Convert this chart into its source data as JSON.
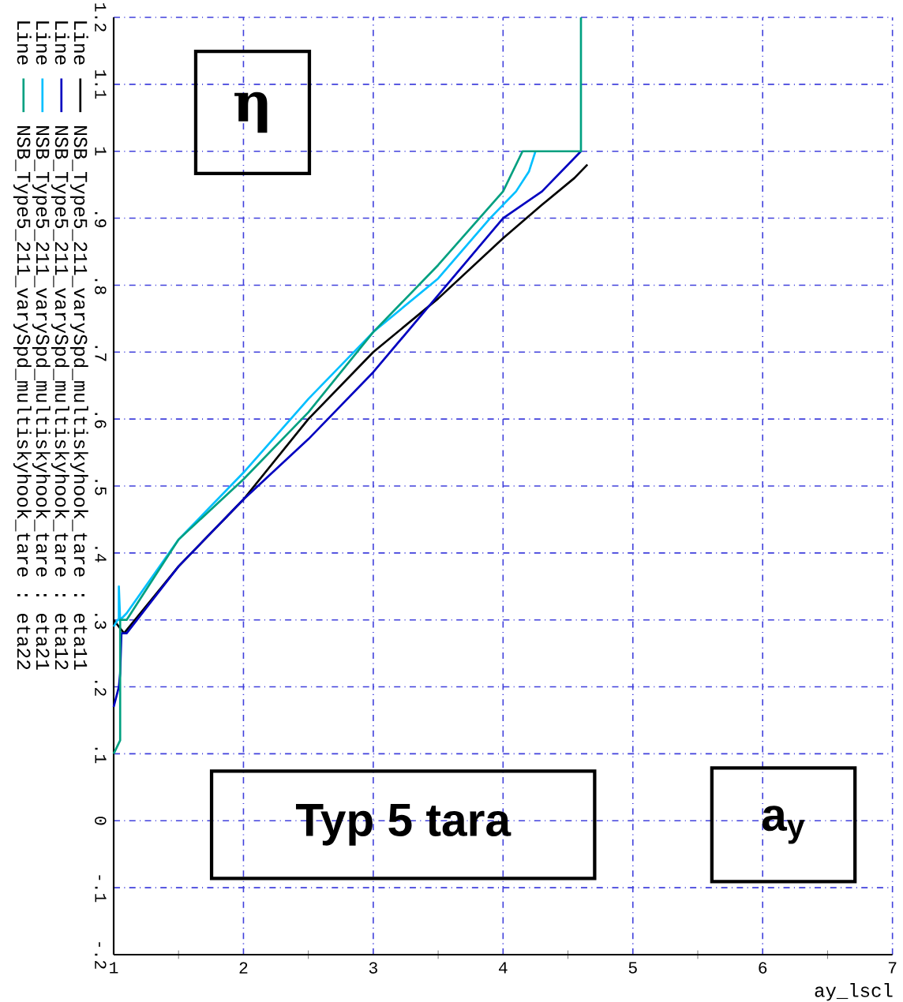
{
  "chart_data": {
    "type": "line",
    "xlabel": "ay_lscl",
    "legend_title": "Line",
    "annotations": [
      "η",
      "Typ 5 tara",
      "a$_{y}$"
    ],
    "xlim": [
      1,
      7
    ],
    "ylim": [
      -0.2,
      1.2
    ],
    "xticks": [
      1,
      2,
      3,
      4,
      5,
      6,
      7
    ],
    "yticks": [
      {
        "value": -0.2,
        "label": "-.2"
      },
      {
        "value": -0.1,
        "label": "-.1"
      },
      0,
      {
        "value": 0.1,
        "label": ".1"
      },
      {
        "value": 0.2,
        "label": ".2"
      },
      {
        "value": 0.3,
        "label": ".3"
      },
      {
        "value": 0.4,
        "label": ".4"
      },
      {
        "value": 0.5,
        "label": ".5"
      },
      {
        "value": 0.6,
        "label": ".6"
      },
      {
        "value": 0.7,
        "label": ".7"
      },
      {
        "value": 0.8,
        "label": ".8"
      },
      {
        "value": 0.9,
        "label": ".9"
      },
      1,
      1.1,
      1.2
    ],
    "grid": true,
    "legend": "left",
    "line_style": "solid",
    "series": [
      {
        "name": "NSB_Type5_211_varySpd_multiskyhook_tare : eta11",
        "color": "#000000",
        "x": [
          1,
          1.04,
          1.08,
          1.5,
          2,
          2.5,
          3,
          3.5,
          4,
          4.3,
          4.55,
          4.65
        ],
        "values": [
          0.3,
          0.29,
          0.28,
          0.38,
          0.48,
          0.6,
          0.7,
          0.78,
          0.87,
          0.92,
          0.96,
          0.98
        ]
      },
      {
        "name": "NSB_Type5_211_varySpd_multiskyhook_tare : eta12",
        "color": "#0000c0",
        "x": [
          1,
          1.04,
          1.05,
          1.06,
          1.1,
          1.5,
          2,
          2.5,
          3,
          3.5,
          4,
          4.3,
          4.6
        ],
        "values": [
          0.17,
          0.2,
          0.22,
          0.28,
          0.28,
          0.38,
          0.48,
          0.57,
          0.67,
          0.785,
          0.9,
          0.94,
          1.0
        ]
      },
      {
        "name": "NSB_Type5_211_varySpd_multiskyhook_tare : eta21",
        "color": "#00bfff",
        "x": [
          1,
          1.03,
          1.04,
          1.04,
          1.05,
          1.1,
          1.5,
          2,
          2.5,
          3,
          3.5,
          3.9,
          4.1,
          4.2,
          4.25
        ],
        "values": [
          0.29,
          0.3,
          0.3,
          0.35,
          0.3,
          0.31,
          0.42,
          0.52,
          0.63,
          0.73,
          0.81,
          0.9,
          0.94,
          0.97,
          1.0
        ]
      },
      {
        "name": "NSB_Type5_211_varySpd_multiskyhook_tare : eta22",
        "color": "#00a080",
        "x": [
          1,
          1.05,
          1.05,
          1.1,
          1.2,
          1.5,
          2,
          2.5,
          3,
          3.5,
          4,
          4.15,
          4.6,
          4.6
        ],
        "values": [
          0.1,
          0.12,
          0.3,
          0.3,
          0.33,
          0.42,
          0.51,
          0.61,
          0.73,
          0.83,
          0.94,
          1.0,
          1.0,
          1.2
        ]
      }
    ]
  }
}
